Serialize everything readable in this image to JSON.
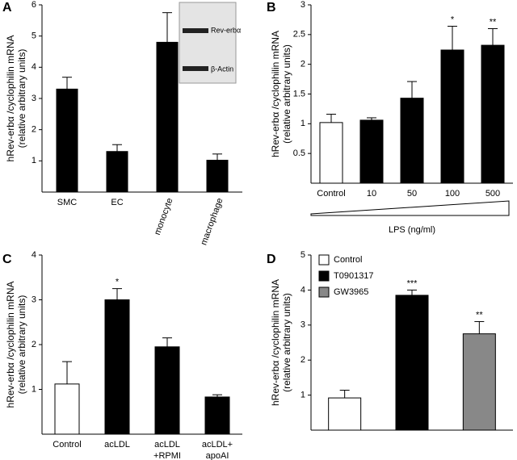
{
  "chart_data": [
    {
      "type": "bar",
      "panel_label": "A",
      "ylabel": [
        "hRev-erbα /cyclophilin mRNA",
        "(relative arbitrary units)"
      ],
      "categories": [
        "SMC",
        "EC",
        "monocyte",
        "macrophage"
      ],
      "values": [
        3.3,
        1.3,
        4.8,
        1.02
      ],
      "errors": [
        0.38,
        0.22,
        0.95,
        0.2
      ],
      "colors": [
        "#000000",
        "#000000",
        "#000000",
        "#000000"
      ],
      "ylim": [
        0,
        6
      ],
      "yticks": [
        1,
        2,
        3,
        4,
        5,
        6
      ],
      "inset_labels": [
        "Rev-erbα",
        "β-Actin"
      ]
    },
    {
      "type": "bar",
      "panel_label": "B",
      "ylabel": [
        "hRev-erbα /cyclophilin mRNA",
        "(relative arbitrary units)"
      ],
      "xlabel": "LPS (ng/ml)",
      "categories": [
        "Control",
        "10",
        "50",
        "100",
        "500"
      ],
      "values": [
        1.02,
        1.06,
        1.43,
        2.24,
        2.32
      ],
      "errors": [
        0.14,
        0.04,
        0.28,
        0.4,
        0.28
      ],
      "colors": [
        "#ffffff",
        "#000000",
        "#000000",
        "#000000",
        "#000000"
      ],
      "ylim": [
        0,
        3
      ],
      "yticks": [
        0.5,
        1,
        1.5,
        2,
        2.5,
        3
      ],
      "annotations": [
        {
          "x": "100",
          "text": "*"
        },
        {
          "x": "500",
          "text": "**"
        }
      ]
    },
    {
      "type": "bar",
      "panel_label": "C",
      "ylabel": [
        "hRev-erbα /cyclophilin mRNA",
        "(relative arbitrary units)"
      ],
      "categories": [
        "Control",
        "acLDL",
        [
          "acLDL",
          "+RPMI"
        ],
        [
          "acLDL+",
          "apoAI"
        ]
      ],
      "values": [
        1.12,
        3.0,
        1.95,
        0.83
      ],
      "errors": [
        0.5,
        0.25,
        0.2,
        0.05
      ],
      "colors": [
        "#ffffff",
        "#000000",
        "#000000",
        "#000000"
      ],
      "ylim": [
        0,
        4
      ],
      "yticks": [
        1,
        2,
        3,
        4
      ],
      "annotations": [
        {
          "x": "acLDL",
          "text": "*"
        }
      ]
    },
    {
      "type": "bar",
      "panel_label": "D",
      "ylabel": [
        "hRev-erbα /cyclophilin mRNA",
        "(relative arbitrary units)"
      ],
      "series": [
        {
          "name": "Control",
          "color": "#ffffff",
          "values": [
            0.92
          ],
          "errors": [
            0.22
          ]
        },
        {
          "name": "T0901317",
          "color": "#000000",
          "values": [
            3.85
          ],
          "errors": [
            0.15
          ],
          "annotation": "***"
        },
        {
          "name": "GW3965",
          "color": "#888888",
          "values": [
            2.75
          ],
          "errors": [
            0.35
          ],
          "annotation": "**"
        }
      ],
      "ylim": [
        0,
        5
      ],
      "yticks": [
        1,
        2,
        3,
        4,
        5
      ],
      "legend": "top-left"
    }
  ]
}
